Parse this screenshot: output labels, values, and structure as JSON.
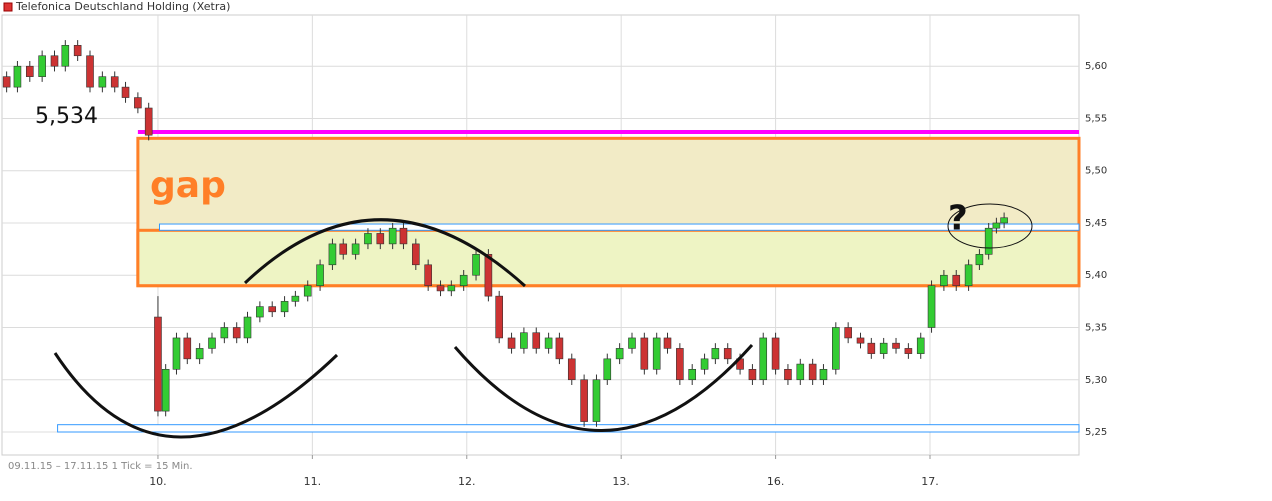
{
  "chart_data": {
    "type": "candlestick",
    "title": "Telefonica Deutschland Holding (Xetra)",
    "footer": "09.11.15 – 17.11.15   1 Tick = 15 Min.",
    "up_color": "#33cc33",
    "down_color": "#cc3333",
    "grid": true,
    "xlim": [
      -0.01,
      6.965
    ],
    "ylim": [
      5.228,
      5.649
    ],
    "xticks": [
      {
        "value": 1,
        "label": "10."
      },
      {
        "value": 2,
        "label": "11."
      },
      {
        "value": 3,
        "label": "12."
      },
      {
        "value": 4,
        "label": "13."
      },
      {
        "value": 5,
        "label": "16."
      },
      {
        "value": 6,
        "label": "17."
      }
    ],
    "yticks": [
      {
        "value": 5.25,
        "label": "5,25"
      },
      {
        "value": 5.3,
        "label": "5,30"
      },
      {
        "value": 5.35,
        "label": "5,35"
      },
      {
        "value": 5.4,
        "label": "5,40"
      },
      {
        "value": 5.45,
        "label": "5,45"
      },
      {
        "value": 5.5,
        "label": "5,50"
      },
      {
        "value": 5.55,
        "label": "5,55"
      },
      {
        "value": 5.6,
        "label": "5,60"
      }
    ],
    "x": [
      0.02,
      0.09,
      0.17,
      0.25,
      0.33,
      0.4,
      0.48,
      0.56,
      0.64,
      0.72,
      0.79,
      0.87,
      0.94,
      1.0,
      1.05,
      1.12,
      1.19,
      1.27,
      1.35,
      1.43,
      1.51,
      1.58,
      1.66,
      1.74,
      1.82,
      1.89,
      1.97,
      2.05,
      2.13,
      2.2,
      2.28,
      2.36,
      2.44,
      2.52,
      2.59,
      2.67,
      2.75,
      2.83,
      2.9,
      2.98,
      3.06,
      3.14,
      3.21,
      3.29,
      3.37,
      3.45,
      3.53,
      3.6,
      3.68,
      3.76,
      3.84,
      3.91,
      3.99,
      4.07,
      4.15,
      4.23,
      4.3,
      4.38,
      4.46,
      4.54,
      4.61,
      4.69,
      4.77,
      4.85,
      4.92,
      5.0,
      5.08,
      5.16,
      5.24,
      5.31,
      5.39,
      5.47,
      5.55,
      5.62,
      5.7,
      5.78,
      5.86,
      5.94,
      6.01,
      6.09,
      6.17,
      6.25,
      6.32,
      6.38,
      6.43,
      6.48
    ],
    "open": [
      5.59,
      5.58,
      5.6,
      5.59,
      5.61,
      5.6,
      5.62,
      5.61,
      5.58,
      5.59,
      5.58,
      5.57,
      5.56,
      5.36,
      5.27,
      5.31,
      5.34,
      5.32,
      5.33,
      5.34,
      5.35,
      5.34,
      5.36,
      5.37,
      5.365,
      5.375,
      5.38,
      5.39,
      5.41,
      5.43,
      5.42,
      5.43,
      5.44,
      5.43,
      5.445,
      5.43,
      5.41,
      5.39,
      5.385,
      5.39,
      5.4,
      5.42,
      5.38,
      5.34,
      5.33,
      5.345,
      5.33,
      5.34,
      5.32,
      5.3,
      5.26,
      5.3,
      5.32,
      5.33,
      5.34,
      5.31,
      5.34,
      5.33,
      5.3,
      5.31,
      5.32,
      5.33,
      5.32,
      5.31,
      5.3,
      5.34,
      5.31,
      5.3,
      5.315,
      5.3,
      5.31,
      5.35,
      5.34,
      5.335,
      5.325,
      5.335,
      5.33,
      5.325,
      5.35,
      5.39,
      5.4,
      5.39,
      5.41,
      5.42,
      5.445,
      5.45
    ],
    "high": [
      5.595,
      5.605,
      5.605,
      5.615,
      5.615,
      5.625,
      5.625,
      5.615,
      5.595,
      5.595,
      5.585,
      5.575,
      5.565,
      5.38,
      5.315,
      5.345,
      5.345,
      5.335,
      5.345,
      5.355,
      5.355,
      5.365,
      5.375,
      5.375,
      5.38,
      5.385,
      5.395,
      5.415,
      5.435,
      5.435,
      5.435,
      5.445,
      5.445,
      5.45,
      5.45,
      5.435,
      5.415,
      5.395,
      5.395,
      5.405,
      5.425,
      5.425,
      5.385,
      5.345,
      5.35,
      5.35,
      5.345,
      5.345,
      5.325,
      5.305,
      5.305,
      5.325,
      5.335,
      5.345,
      5.345,
      5.345,
      5.345,
      5.335,
      5.315,
      5.325,
      5.335,
      5.335,
      5.325,
      5.315,
      5.345,
      5.345,
      5.315,
      5.32,
      5.32,
      5.315,
      5.355,
      5.355,
      5.345,
      5.34,
      5.34,
      5.34,
      5.335,
      5.345,
      5.395,
      5.405,
      5.405,
      5.415,
      5.425,
      5.45,
      5.455,
      5.46
    ],
    "low": [
      5.575,
      5.575,
      5.585,
      5.585,
      5.595,
      5.595,
      5.605,
      5.575,
      5.575,
      5.575,
      5.565,
      5.555,
      5.529,
      5.265,
      5.265,
      5.305,
      5.315,
      5.315,
      5.325,
      5.335,
      5.335,
      5.335,
      5.355,
      5.36,
      5.36,
      5.37,
      5.375,
      5.385,
      5.405,
      5.415,
      5.415,
      5.425,
      5.425,
      5.425,
      5.425,
      5.405,
      5.385,
      5.38,
      5.38,
      5.385,
      5.395,
      5.375,
      5.335,
      5.325,
      5.325,
      5.325,
      5.325,
      5.315,
      5.295,
      5.255,
      5.255,
      5.295,
      5.315,
      5.325,
      5.305,
      5.305,
      5.325,
      5.295,
      5.295,
      5.305,
      5.315,
      5.315,
      5.305,
      5.295,
      5.295,
      5.305,
      5.295,
      5.295,
      5.295,
      5.295,
      5.305,
      5.335,
      5.33,
      5.32,
      5.32,
      5.325,
      5.32,
      5.32,
      5.345,
      5.385,
      5.385,
      5.385,
      5.405,
      5.415,
      5.44,
      5.445
    ],
    "close": [
      5.58,
      5.6,
      5.59,
      5.61,
      5.6,
      5.62,
      5.61,
      5.58,
      5.59,
      5.58,
      5.57,
      5.56,
      5.534,
      5.27,
      5.31,
      5.34,
      5.32,
      5.33,
      5.34,
      5.35,
      5.34,
      5.36,
      5.37,
      5.365,
      5.375,
      5.38,
      5.39,
      5.41,
      5.43,
      5.42,
      5.43,
      5.44,
      5.43,
      5.445,
      5.43,
      5.41,
      5.39,
      5.385,
      5.39,
      5.4,
      5.42,
      5.38,
      5.34,
      5.33,
      5.345,
      5.33,
      5.34,
      5.32,
      5.3,
      5.26,
      5.3,
      5.32,
      5.33,
      5.34,
      5.31,
      5.34,
      5.33,
      5.3,
      5.31,
      5.32,
      5.33,
      5.32,
      5.31,
      5.3,
      5.34,
      5.31,
      5.3,
      5.315,
      5.3,
      5.31,
      5.35,
      5.34,
      5.335,
      5.325,
      5.335,
      5.33,
      5.325,
      5.34,
      5.39,
      5.4,
      5.39,
      5.41,
      5.42,
      5.445,
      5.45,
      5.455
    ],
    "bands": [
      {
        "from": 5.39,
        "to": 5.531,
        "x0": 0.87,
        "stroke": "#ff7f27",
        "fill": "#f2ebc6"
      },
      {
        "from": 5.39,
        "to": 5.443,
        "x0": 0.87,
        "stroke": "#ff7f27",
        "fill": "#eef4c4"
      },
      {
        "from": 5.443,
        "to": 5.449,
        "x0": 1.01,
        "stroke": "#3399ff",
        "fill": "#ffffff"
      },
      {
        "from": 5.25,
        "to": 5.257,
        "x0": 0.35,
        "stroke": "#3399ff",
        "fill": "#ffffff"
      }
    ],
    "levels": [
      {
        "value": 5.537,
        "x0": 0.87,
        "color": "#ff00ff"
      }
    ],
    "annotations": {
      "last_close": "5,534",
      "gap": "gap",
      "question": "?"
    }
  }
}
